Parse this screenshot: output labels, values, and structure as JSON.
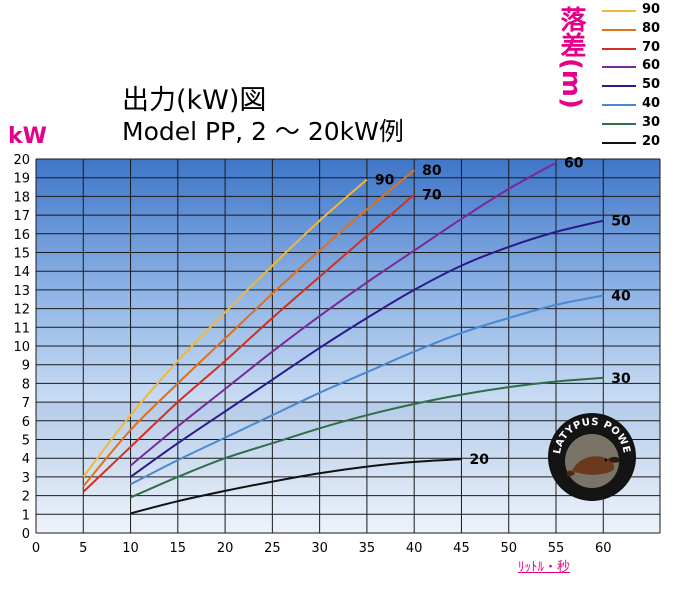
{
  "title_line1": "出力(kW)図",
  "title_line2": "Model PP, 2 〜 20kW例",
  "y_unit": "kW",
  "head_label": "落差(m)",
  "x_unit": "ﾘｯﾄﾙ・秒",
  "logo_text": "PLATYPUS POWER",
  "chart_data": {
    "type": "line",
    "x_ticks": [
      0,
      5,
      10,
      15,
      20,
      25,
      30,
      35,
      40,
      45,
      50,
      55,
      60
    ],
    "y_ticks": [
      0,
      1,
      2,
      3,
      4,
      5,
      6,
      7,
      8,
      9,
      10,
      11,
      12,
      13,
      14,
      15,
      16,
      17,
      18,
      19,
      20
    ],
    "xlim": [
      0,
      66
    ],
    "ylim": [
      0,
      20
    ],
    "series": [
      {
        "name": "90",
        "color": "#f0b838",
        "x": [
          5,
          10,
          15,
          20,
          25,
          30,
          35
        ],
        "y": [
          3.0,
          6.3,
          9.2,
          11.8,
          14.3,
          16.7,
          18.9
        ]
      },
      {
        "name": "80",
        "color": "#e0701a",
        "x": [
          5,
          10,
          15,
          20,
          25,
          30,
          35,
          40
        ],
        "y": [
          2.5,
          5.5,
          8.0,
          10.4,
          12.8,
          15.1,
          17.3,
          19.4
        ]
      },
      {
        "name": "70",
        "color": "#d03020",
        "x": [
          5,
          10,
          15,
          20,
          25,
          30,
          35,
          40
        ],
        "y": [
          2.2,
          4.6,
          7.0,
          9.2,
          11.5,
          13.7,
          15.9,
          18.1
        ]
      },
      {
        "name": "60",
        "color": "#7a2a98",
        "x": [
          10,
          15,
          20,
          25,
          30,
          35,
          40,
          45,
          50,
          55
        ],
        "y": [
          3.6,
          5.7,
          7.7,
          9.7,
          11.6,
          13.4,
          15.1,
          16.8,
          18.4,
          19.8
        ]
      },
      {
        "name": "50",
        "color": "#2a1a8a",
        "x": [
          10,
          15,
          20,
          25,
          30,
          35,
          40,
          45,
          50,
          55,
          60
        ],
        "y": [
          3.0,
          4.8,
          6.5,
          8.2,
          9.9,
          11.5,
          13.0,
          14.3,
          15.3,
          16.1,
          16.7
        ]
      },
      {
        "name": "40",
        "color": "#4a88d0",
        "x": [
          10,
          15,
          20,
          25,
          30,
          35,
          40,
          45,
          50,
          55,
          60
        ],
        "y": [
          2.6,
          3.9,
          5.1,
          6.3,
          7.5,
          8.6,
          9.7,
          10.7,
          11.5,
          12.2,
          12.7
        ]
      },
      {
        "name": "30",
        "color": "#2e6e48",
        "x": [
          10,
          15,
          20,
          25,
          30,
          35,
          40,
          45,
          50,
          55,
          60
        ],
        "y": [
          1.9,
          3.0,
          4.0,
          4.8,
          5.6,
          6.3,
          6.9,
          7.4,
          7.8,
          8.1,
          8.3
        ]
      },
      {
        "name": "20",
        "color": "#111111",
        "x": [
          10,
          15,
          20,
          25,
          30,
          35,
          40,
          45
        ],
        "y": [
          1.05,
          1.7,
          2.25,
          2.75,
          3.2,
          3.55,
          3.8,
          3.95
        ]
      }
    ],
    "legend": [
      "90",
      "80",
      "70",
      "60",
      "50",
      "40",
      "30",
      "20"
    ],
    "grid": true
  }
}
